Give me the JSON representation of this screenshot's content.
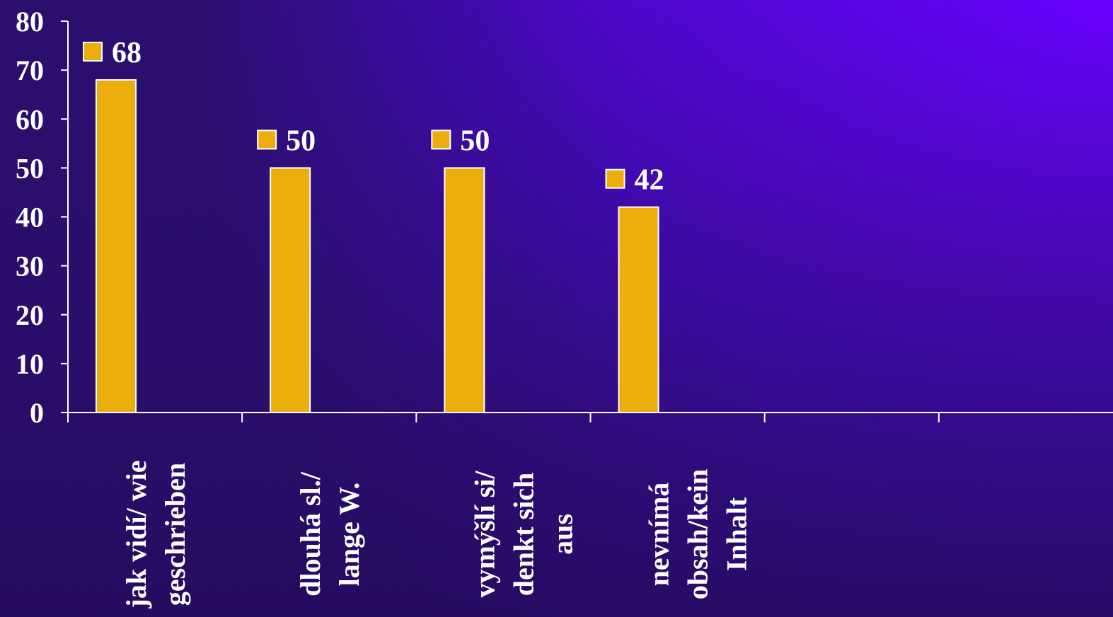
{
  "chart_data": {
    "type": "bar",
    "categories": [
      [
        "jak vidí/ wie",
        "geschrieben"
      ],
      [
        "dlouhá sl./",
        "lange W."
      ],
      [
        "vymýšlí si/",
        "denkt sich",
        "aus"
      ],
      [
        "nevnímá",
        "obsah/kein",
        "Inhalt"
      ],
      [
        ""
      ],
      [
        ""
      ]
    ],
    "values": [
      68,
      50,
      50,
      42,
      null,
      null
    ],
    "data_labels": [
      "68",
      "50",
      "50",
      "42",
      "",
      ""
    ],
    "y_ticks": [
      "0",
      "10",
      "20",
      "30",
      "40",
      "50",
      "60",
      "70",
      "80"
    ],
    "ylim": [
      0,
      80
    ],
    "title": "",
    "xlabel": "",
    "ylabel": "",
    "grid": false,
    "legend": "none",
    "colors": {
      "bar": "#EBAE0C",
      "bar_border": "#ffffff",
      "axis": "#ffffff",
      "text": "#ffffff",
      "background_dark": "#2a0f6e",
      "background_bright": "#6b00ff"
    }
  }
}
